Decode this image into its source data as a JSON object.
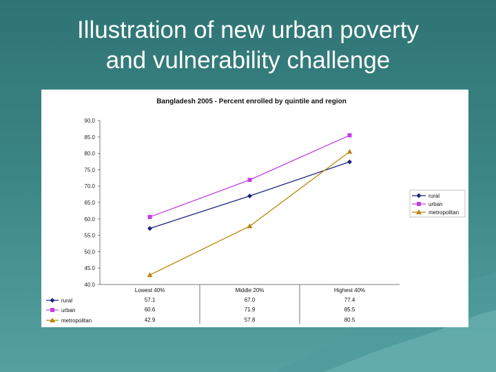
{
  "slide": {
    "title_line1": "Illustration of new urban poverty",
    "title_line2": "and vulnerability challenge"
  },
  "chart_data": {
    "type": "line",
    "title": "Bangladesh 2005 - Percent enrolled by quintile and region",
    "categories": [
      "Lowest 40%",
      "Middle 20%",
      "Highest 40%"
    ],
    "ylim": [
      40,
      90
    ],
    "y_ticks": [
      "90.0",
      "85.0",
      "80.0",
      "75.0",
      "70.0",
      "65.0",
      "60.0",
      "55.0",
      "50.0",
      "45.0",
      "40.0"
    ],
    "series": [
      {
        "name": "rural",
        "values": [
          57.1,
          67.0,
          77.4
        ],
        "display": [
          "57.1",
          "67.0",
          "77.4"
        ],
        "color": "#1a237e",
        "marker": "diamond"
      },
      {
        "name": "urban",
        "values": [
          60.6,
          71.9,
          85.5
        ],
        "display": [
          "60.6",
          "71.9",
          "85.5"
        ],
        "color": "#c040e0",
        "marker": "square"
      },
      {
        "name": "metropolitan",
        "values": [
          42.9,
          57.8,
          80.5
        ],
        "display": [
          "42.9",
          "57.8",
          "80.5"
        ],
        "color": "#b8860b",
        "marker": "triangle"
      }
    ],
    "legend_position": "right",
    "grid": false
  }
}
